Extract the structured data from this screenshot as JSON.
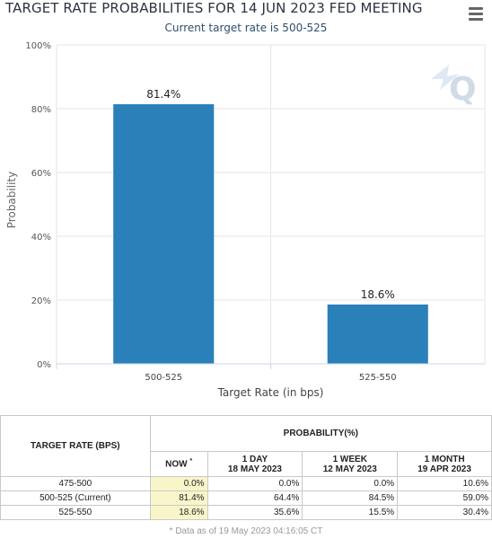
{
  "header": {
    "title": "TARGET RATE PROBABILITIES FOR 14 JUN 2023 FED MEETING",
    "subtitle": "Current target rate is 500-525"
  },
  "watermark": "Q",
  "chart_data": {
    "type": "bar",
    "title": "TARGET RATE PROBABILITIES FOR 14 JUN 2023 FED MEETING",
    "subtitle": "Current target rate is 500-525",
    "categories": [
      "500-525",
      "525-550"
    ],
    "values": [
      81.4,
      18.6
    ],
    "data_labels": [
      "81.4%",
      "18.6%"
    ],
    "xlabel": "Target Rate (in bps)",
    "ylabel": "Probability",
    "ylim": [
      0,
      100
    ],
    "yticks": [
      "0%",
      "20%",
      "40%",
      "60%",
      "80%",
      "100%"
    ],
    "ytick_values": [
      0,
      20,
      40,
      60,
      80,
      100
    ],
    "bar_color": "#2a80b9",
    "grid": true
  },
  "table": {
    "target_rate_header": "TARGET RATE (BPS)",
    "probability_header": "PROBABILITY(%)",
    "columns": [
      {
        "line1": "NOW",
        "sup": "*",
        "line2": ""
      },
      {
        "line1": "1 DAY",
        "line2": "18 MAY 2023"
      },
      {
        "line1": "1 WEEK",
        "line2": "12 MAY 2023"
      },
      {
        "line1": "1 MONTH",
        "line2": "19 APR 2023"
      }
    ],
    "rows": [
      {
        "rate": "475-500",
        "now": "0.0%",
        "day": "0.0%",
        "week": "0.0%",
        "month": "10.6%"
      },
      {
        "rate": "500-525 (Current)",
        "now": "81.4%",
        "day": "64.4%",
        "week": "84.5%",
        "month": "59.0%"
      },
      {
        "rate": "525-550",
        "now": "18.6%",
        "day": "35.6%",
        "week": "15.5%",
        "month": "30.4%"
      }
    ],
    "footnote": "* Data as of 19 May 2023 04:16:05 CT"
  },
  "colors": {
    "now_highlight": "#f8f6c9",
    "grid": "#e6e6e6",
    "bar": "#2a80b9"
  }
}
